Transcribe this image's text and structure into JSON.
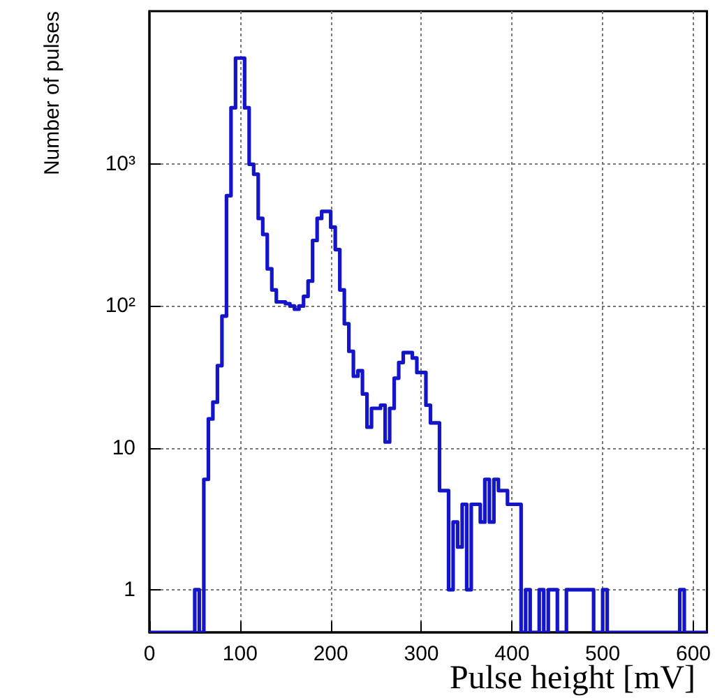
{
  "chart_data": {
    "type": "histogram",
    "xlabel": "Pulse height [mV]",
    "ylabel": "Number of pulses",
    "bins": [
      0,
      5,
      10,
      15,
      20,
      25,
      30,
      35,
      40,
      45,
      50,
      55,
      60,
      65,
      70,
      75,
      80,
      85,
      90,
      95,
      100,
      105,
      110,
      115,
      120,
      125,
      130,
      135,
      140,
      145,
      150,
      155,
      160,
      165,
      170,
      175,
      180,
      185,
      190,
      195,
      200,
      205,
      210,
      215,
      220,
      225,
      230,
      235,
      240,
      245,
      250,
      255,
      260,
      265,
      270,
      275,
      280,
      285,
      290,
      295,
      300,
      305,
      310,
      315,
      320,
      325,
      330,
      335,
      340,
      345,
      350,
      355,
      360,
      365,
      370,
      375,
      380,
      385,
      390,
      395,
      400,
      405,
      410,
      415,
      420,
      425,
      430,
      435,
      440,
      445,
      450,
      455,
      460,
      465,
      470,
      475,
      480,
      485,
      490,
      495,
      500,
      505,
      510,
      515,
      520,
      525,
      530,
      535,
      540,
      545,
      550,
      555,
      560,
      565,
      570,
      575,
      580,
      585,
      590,
      595,
      600,
      605,
      610,
      615
    ],
    "values": [
      null,
      null,
      null,
      null,
      null,
      null,
      null,
      null,
      null,
      null,
      1,
      null,
      6,
      16,
      21,
      38,
      85,
      600,
      2500,
      5600,
      5600,
      2500,
      1000,
      850,
      415,
      320,
      183,
      130,
      107,
      107,
      104,
      100,
      95,
      100,
      117,
      150,
      290,
      415,
      465,
      465,
      360,
      250,
      130,
      75,
      48,
      32,
      35,
      24,
      14,
      19,
      19,
      20,
      11,
      19,
      31,
      40,
      47,
      47,
      43,
      34,
      34,
      20,
      15,
      15,
      5,
      5,
      1,
      3,
      2,
      4,
      1,
      4,
      4,
      3,
      6,
      3,
      6,
      5,
      5,
      4,
      4,
      4,
      null,
      1,
      null,
      null,
      1,
      null,
      1,
      1,
      null,
      null,
      1,
      1,
      1,
      1,
      1,
      1,
      null,
      null,
      1,
      null,
      null,
      null,
      null,
      null,
      null,
      null,
      null,
      null,
      null,
      null,
      null,
      null,
      null,
      null,
      null,
      1,
      null,
      null,
      null,
      null,
      null
    ],
    "color": "#1414c8",
    "xlim": [
      0,
      615
    ],
    "xticks": [
      0,
      100,
      200,
      300,
      400,
      500,
      600
    ],
    "ylim": [
      0.5,
      12000
    ],
    "yticks": [
      1,
      10,
      {
        "value": 100,
        "label": "10²"
      },
      {
        "value": 1000,
        "label": "10³"
      }
    ],
    "log": "y",
    "grid": true
  }
}
